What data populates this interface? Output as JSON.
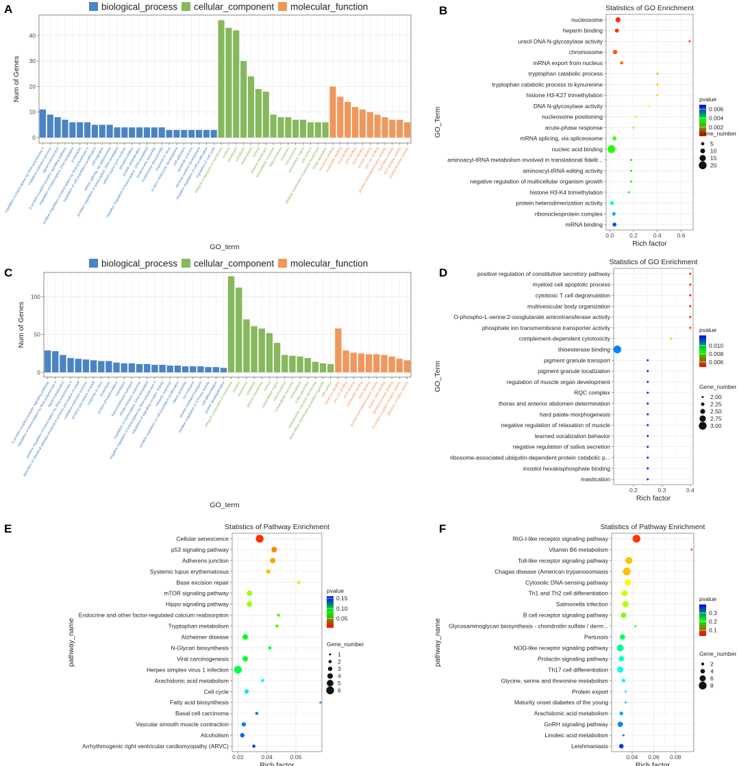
{
  "colors": {
    "biological_process": "#4a84c4",
    "cellular_component": "#86b85d",
    "molecular_function": "#f0975b"
  },
  "panel_labels": [
    "A",
    "B",
    "C",
    "D",
    "E",
    "F"
  ],
  "chart_data": [
    {
      "panel": "A",
      "type": "bar",
      "xlabel": "GO_term",
      "ylabel": "Num of Genes",
      "ylim": [
        0,
        48
      ],
      "yticks": [
        0,
        10,
        20,
        30,
        40
      ],
      "legend": [
        "biological_process",
        "cellular_component",
        "molecular_function"
      ],
      "categories": [
        "regulation of transcription by RNA polymerase II",
        "oxidation-reduction process",
        "signal transduction",
        "G protein-coupled receptor signaling pathway",
        "regulation of transcription, DNA-templated",
        "proteolysis",
        "positive regulation of transcription by RNA polymerase II",
        "regulation of cell population proliferation",
        "cell migration",
        "mRNA splicing, via spliceosome",
        "positive regulation of transcription, DNA-templated",
        "mRNA export from nucleus",
        "phosphorylation",
        "protein ubiquitination",
        "negative regulation of transcription, DNA-templated",
        "nucleosome assembly",
        "nucleosome disassembly",
        "response to virus",
        "in utero embryonic development",
        "cell adhesion",
        "apoptotic process",
        "nervous system development",
        "negative regulation of cell proliferation",
        "regulation of cell cycle",
        "integral component of membrane",
        "nucleus",
        "membrane",
        "cytoplasm",
        "nucleoplasm",
        "cytosol",
        "plasma membrane",
        "extracellular exosome",
        "mitochondrion",
        "nucleolus",
        "chromosome",
        "perinuclear region",
        "cell surface",
        "integral component of plasma membrane",
        "Golgi apparatus",
        "metal ion binding",
        "nucleotide binding",
        "DNA binding",
        "ATP binding",
        "RNA binding",
        "protein binding",
        "zinc ion binding",
        "protein homodimerization activity",
        "hydrolase activity",
        "ATP-binding activity",
        "oxidoreductase activity"
      ],
      "groups": [
        "biological_process",
        "biological_process",
        "biological_process",
        "biological_process",
        "biological_process",
        "biological_process",
        "biological_process",
        "biological_process",
        "biological_process",
        "biological_process",
        "biological_process",
        "biological_process",
        "biological_process",
        "biological_process",
        "biological_process",
        "biological_process",
        "biological_process",
        "biological_process",
        "biological_process",
        "biological_process",
        "biological_process",
        "biological_process",
        "biological_process",
        "biological_process",
        "cellular_component",
        "cellular_component",
        "cellular_component",
        "cellular_component",
        "cellular_component",
        "cellular_component",
        "cellular_component",
        "cellular_component",
        "cellular_component",
        "cellular_component",
        "cellular_component",
        "cellular_component",
        "cellular_component",
        "cellular_component",
        "cellular_component",
        "molecular_function",
        "molecular_function",
        "molecular_function",
        "molecular_function",
        "molecular_function",
        "molecular_function",
        "molecular_function",
        "molecular_function",
        "molecular_function",
        "molecular_function",
        "molecular_function"
      ],
      "values": [
        11,
        9,
        8,
        7,
        6,
        6,
        6,
        5,
        5,
        5,
        4,
        4,
        4,
        4,
        4,
        4,
        4,
        3,
        3,
        3,
        3,
        3,
        3,
        3,
        46,
        43,
        42,
        30,
        24,
        19,
        18,
        9,
        8,
        8,
        7,
        7,
        6,
        6,
        6,
        20,
        16,
        14,
        12,
        11,
        10,
        9,
        8,
        7,
        7,
        6
      ]
    },
    {
      "panel": "B",
      "type": "scatter",
      "title": "Statistics of GO Enrichment",
      "xlabel": "Rich factor",
      "ylabel": "GO_Term",
      "xlim": [
        -0.03,
        0.7
      ],
      "xticks": [
        0.0,
        0.2,
        0.4,
        0.6
      ],
      "xtick_labels": [
        "0.0",
        "0.2",
        "0.4",
        "0.6"
      ],
      "terms": [
        "nucleosome",
        "heparin binding",
        "uracil DNA N-glycosylase activity",
        "chromosome",
        "mRNA export from nucleus",
        "tryptophan catabolic process",
        "tryptophan catabolic process to kynurenine",
        "histone H3-K27 trimethylation",
        "DNA N-glycosylase activity",
        "nucleosome positioning",
        "acute-phase response",
        "mRNA splicing, via spliceosome",
        "nucleic acid binding",
        "aminoacyl-tRNA metabolism involved in translational fidelit...",
        "aminoacyl-tRNA editing activity",
        "negative regulation of multicellular organism growth",
        "histone H3-K4 trimethylation",
        "protein heterodimerization activity",
        "ribonucleoprotein complex",
        "mRNA binding"
      ],
      "rich_factor": [
        0.07,
        0.06,
        0.67,
        0.045,
        0.1,
        0.4,
        0.4,
        0.4,
        0.33,
        0.22,
        0.2,
        0.04,
        0.015,
        0.18,
        0.18,
        0.18,
        0.16,
        0.02,
        0.035,
        0.04
      ],
      "pvalue": [
        0.0003,
        0.0004,
        0.0005,
        0.0006,
        0.0008,
        0.0012,
        0.0013,
        0.0014,
        0.0018,
        0.0022,
        0.0025,
        0.003,
        0.0033,
        0.0035,
        0.0035,
        0.0035,
        0.0038,
        0.0048,
        0.0058,
        0.0065
      ],
      "gene_number": [
        11,
        8,
        1,
        9,
        5,
        1,
        1,
        1,
        1,
        1,
        1,
        8,
        20,
        1,
        1,
        1,
        1,
        7,
        6,
        7
      ],
      "color_legend": {
        "title": "pvalue",
        "min": 0.0,
        "max": 0.007,
        "ticks": [
          "0.006",
          "0.004",
          "0.002"
        ],
        "tick_values": [
          0.006,
          0.004,
          0.002
        ]
      },
      "size_legend": {
        "title": "Gene_number",
        "labels": [
          "5",
          "10",
          "15",
          "20"
        ],
        "values": [
          5,
          10,
          15,
          20
        ],
        "vmin": 1,
        "vmax": 20
      }
    },
    {
      "panel": "C",
      "type": "bar",
      "xlabel": "GO_term",
      "ylabel": "Num of Genes",
      "ylim": [
        0,
        132
      ],
      "yticks": [
        0,
        50,
        100
      ],
      "legend": [
        "biological_process",
        "cellular_component",
        "molecular_function"
      ],
      "categories": [
        "G protein-coupled receptor signaling pathway",
        "regulation of transcription by RNA polymerase II",
        "signal transduction",
        "positive regulation of transcription by RNA polymerase II",
        "detection of chemical stimulus involved in sensory perception of smell",
        "oxidation-reduction process",
        "sensory perception of smell",
        "response to virus",
        "proteolysis",
        "protein phosphorylation",
        "translation",
        "transmembrane transport",
        "innate immune response",
        "regulation of transcription, DNA-templated",
        "negative regulation of transcription by RNA polymerase II",
        "regulation of signaling receptor activity",
        "immune response",
        "positive regulation of cell population proliferation",
        "cilium assembly",
        "ion transport",
        "vesicle-mediated transport",
        "positive regulation of GTPase activity",
        "cell differentiation",
        "protein deubiquitination",
        "integral component of membrane",
        "nucleus",
        "membrane",
        "cytoplasm",
        "plasma membrane",
        "cytosol",
        "extracellular region",
        "mitochondrion",
        "extracellular exosome",
        "nucleoplasm",
        "Golgi apparatus",
        "endoplasmic reticulum membrane",
        "intracellular membrane-bounded organelle",
        "cell surface",
        "metal ion binding",
        "zinc ion binding",
        "ATP binding",
        "nucleotide binding",
        "DNA binding",
        "protein homodimerization activity",
        "nucleic acid binding",
        "identical protein binding",
        "G protein-coupled receptor activity",
        "olfactory receptor activity"
      ],
      "groups": [
        "biological_process",
        "biological_process",
        "biological_process",
        "biological_process",
        "biological_process",
        "biological_process",
        "biological_process",
        "biological_process",
        "biological_process",
        "biological_process",
        "biological_process",
        "biological_process",
        "biological_process",
        "biological_process",
        "biological_process",
        "biological_process",
        "biological_process",
        "biological_process",
        "biological_process",
        "biological_process",
        "biological_process",
        "biological_process",
        "biological_process",
        "biological_process",
        "cellular_component",
        "cellular_component",
        "cellular_component",
        "cellular_component",
        "cellular_component",
        "cellular_component",
        "cellular_component",
        "cellular_component",
        "cellular_component",
        "cellular_component",
        "cellular_component",
        "cellular_component",
        "cellular_component",
        "cellular_component",
        "molecular_function",
        "molecular_function",
        "molecular_function",
        "molecular_function",
        "molecular_function",
        "molecular_function",
        "molecular_function",
        "molecular_function",
        "molecular_function",
        "molecular_function"
      ],
      "values": [
        29,
        28,
        23,
        19,
        18,
        17,
        16,
        15,
        15,
        13,
        12,
        12,
        11,
        11,
        10,
        10,
        9,
        9,
        8,
        8,
        8,
        7,
        7,
        6,
        127,
        112,
        70,
        61,
        58,
        52,
        39,
        23,
        22,
        21,
        19,
        14,
        12,
        11,
        58,
        29,
        26,
        25,
        24,
        24,
        23,
        21,
        18,
        16
      ]
    },
    {
      "panel": "D",
      "type": "scatter",
      "title": "Statistics of GO Enrichment",
      "xlabel": "Rich factor",
      "ylabel": "GO_Term",
      "xlim": [
        0.13,
        0.41
      ],
      "xticks": [
        0.2,
        0.3,
        0.4
      ],
      "xtick_labels": [
        "0.2",
        "0.3",
        "0.4"
      ],
      "terms": [
        "positive regulation of constitutive secretory pathway",
        "myeloid cell apoptotic process",
        "cytotoxic T cell degranulation",
        "multivesicular body organization",
        "O-phospho-L-serine:2-oxoglutarate aminotransferase activity",
        "phosphate ion transmembrane transporter activity",
        "complement-dependent cytotoxicity",
        "thioesterase binding",
        "pigment granule transport",
        "pigment granule localization",
        "regulation of muscle organ development",
        "RQC complex",
        "thorax and anterior abdomen determination",
        "hard palate morphogenesis",
        "negative regulation of relaxation of muscle",
        "learned vocalization behavior",
        "negative regulation of saliva secretion",
        "ribosome-associated ubiquitin-dependent protein catabolic p...",
        "inositol hexakisphosphate binding",
        "mastication"
      ],
      "rich_factor": [
        0.4,
        0.4,
        0.4,
        0.4,
        0.4,
        0.4,
        0.333,
        0.143,
        0.25,
        0.25,
        0.25,
        0.25,
        0.25,
        0.25,
        0.25,
        0.25,
        0.25,
        0.25,
        0.25,
        0.25
      ],
      "pvalue": [
        0.005,
        0.005,
        0.005,
        0.005,
        0.005,
        0.0052,
        0.0075,
        0.0115,
        0.0122,
        0.0122,
        0.0122,
        0.0122,
        0.0122,
        0.0122,
        0.0122,
        0.0122,
        0.0122,
        0.0122,
        0.0122,
        0.0122
      ],
      "gene_number": [
        2,
        2,
        2,
        2,
        2,
        2,
        2,
        3,
        2,
        2,
        2,
        2,
        2,
        2,
        2,
        2,
        2,
        2,
        2,
        2
      ],
      "color_legend": {
        "title": "pvalue",
        "min": 0.0048,
        "max": 0.0125,
        "ticks": [
          "0.010",
          "0.008",
          "0.006"
        ],
        "tick_values": [
          0.01,
          0.008,
          0.006
        ]
      },
      "size_legend": {
        "title": "Gene_number",
        "labels": [
          "2.00",
          "2.25",
          "2.50",
          "2.75",
          "3.00"
        ],
        "values": [
          2.0,
          2.25,
          2.5,
          2.75,
          3.0
        ],
        "vmin": 2,
        "vmax": 3
      }
    },
    {
      "panel": "E",
      "type": "scatter",
      "title": "Statistics of Pathway Enrichment",
      "xlabel": "Rich factor",
      "ylabel": "pathway_name",
      "xlim": [
        0.016,
        0.078
      ],
      "xticks": [
        0.02,
        0.04,
        0.06
      ],
      "xtick_labels": [
        "0.02",
        "0.04",
        "0.06"
      ],
      "terms": [
        "Cellular senescence",
        "p53 signaling pathway",
        "Adherens junction",
        "Systemic lupus erythematosus",
        "Base excision repair",
        "mTOR signaling pathway",
        "Hippo signaling pathway",
        "Endocrine and other factor-regulated calcium reabsorption",
        "Tryptophan metabolism",
        "Alzheimer disease",
        "N-Glycan biosynthesis",
        "Viral carcinogenesis",
        "Herpes simplex virus 1 infection",
        "Arachidonic acid metabolism",
        "Cell cycle",
        "Fatty acid biosynthesis",
        "Basal cell carcinoma",
        "Vascular smooth muscle contraction",
        "Alcoholism",
        "Arrhythmogenic right ventricular cardiomyopathy (ARVC)"
      ],
      "rich_factor": [
        0.035,
        0.045,
        0.044,
        0.041,
        0.062,
        0.028,
        0.028,
        0.048,
        0.047,
        0.025,
        0.042,
        0.025,
        0.02,
        0.037,
        0.026,
        0.077,
        0.033,
        0.024,
        0.023,
        0.031
      ],
      "pvalue": [
        0.012,
        0.025,
        0.03,
        0.035,
        0.04,
        0.058,
        0.06,
        0.07,
        0.072,
        0.085,
        0.09,
        0.09,
        0.095,
        0.12,
        0.125,
        0.14,
        0.14,
        0.14,
        0.145,
        0.15
      ],
      "gene_number": [
        6,
        4,
        4,
        3,
        2,
        4,
        4,
        2,
        2,
        4,
        2,
        4,
        6,
        2,
        3,
        1,
        2,
        3,
        3,
        2
      ],
      "color_legend": {
        "title": "pvalue",
        "min": 0.005,
        "max": 0.16,
        "ticks": [
          "0.15",
          "0.10",
          "0.05"
        ],
        "tick_values": [
          0.15,
          0.1,
          0.05
        ]
      },
      "size_legend": {
        "title": "Gene_number",
        "labels": [
          "1",
          "2",
          "3",
          "4",
          "5",
          "6"
        ],
        "values": [
          1,
          2,
          3,
          4,
          5,
          6
        ],
        "vmin": 1,
        "vmax": 6
      }
    },
    {
      "panel": "F",
      "type": "scatter",
      "title": "Statistics of Pathway Enrichment",
      "xlabel": "Rich factor",
      "ylabel": "pathway_name",
      "xlim": [
        0.021,
        0.097
      ],
      "xticks": [
        0.04,
        0.06,
        0.08
      ],
      "xtick_labels": [
        "0.04",
        "0.06",
        "0.08"
      ],
      "terms": [
        "RIG-I-like receptor signaling pathway",
        "Vitamin B6 metabolism",
        "Toll-like receptor signaling pathway",
        "Chagas disease (American trypanosomiasis",
        "Cytosolic DNA-sensing pathway",
        "Th1 and Th2 cell differentiation",
        "Salmonella infection",
        "B cell receptor signaling pathway",
        "Glycosaminoglycan biosynthesis - chondroitin sulfate / derm...",
        "Pertussis",
        "NOD-like receptor signaling pathway",
        "Prolactin signaling pathway",
        "Th17 cell differentiation",
        "Glycine, serine and threonine metabolism",
        "Protein export",
        "Maturity onset diabetes of the young",
        "Arachidonic acid metabolism",
        "GnRH signaling pathway",
        "Linoleic acid metabolism",
        "Leishmaniasis"
      ],
      "rich_factor": [
        0.044,
        0.095,
        0.037,
        0.035,
        0.036,
        0.033,
        0.034,
        0.032,
        0.043,
        0.031,
        0.029,
        0.03,
        0.029,
        0.032,
        0.034,
        0.034,
        0.03,
        0.029,
        0.032,
        0.03
      ],
      "pvalue": [
        0.05,
        0.06,
        0.1,
        0.1,
        0.12,
        0.14,
        0.15,
        0.17,
        0.2,
        0.25,
        0.27,
        0.29,
        0.3,
        0.31,
        0.32,
        0.33,
        0.34,
        0.35,
        0.36,
        0.38
      ],
      "gene_number": [
        8,
        1,
        7,
        8,
        6,
        6,
        6,
        5,
        1,
        5,
        7,
        5,
        6,
        3,
        1,
        1,
        3,
        5,
        1,
        4
      ],
      "color_legend": {
        "title": "pvalue",
        "min": 0.03,
        "max": 0.4,
        "ticks": [
          "0.3",
          "0.2",
          "0.1"
        ],
        "tick_values": [
          0.3,
          0.2,
          0.1
        ]
      },
      "size_legend": {
        "title": "Gene_number",
        "labels": [
          "2",
          "4",
          "6",
          "8"
        ],
        "values": [
          2,
          4,
          6,
          8
        ],
        "vmin": 1,
        "vmax": 8
      }
    }
  ]
}
